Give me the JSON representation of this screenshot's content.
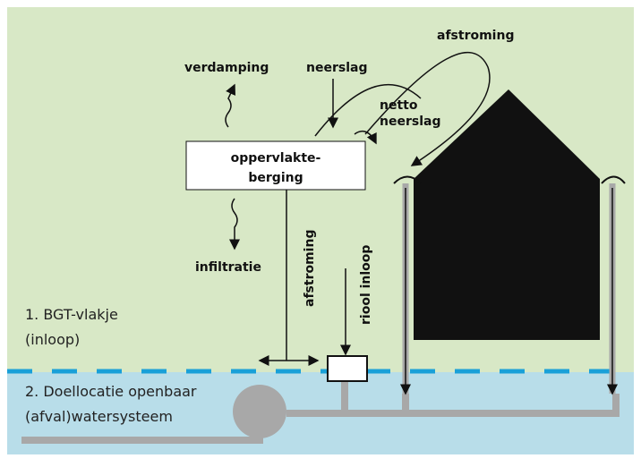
{
  "labels": {
    "afstroming_top": "afstroming",
    "verdamping": "verdamping",
    "neerslag": "neerslag",
    "netto_1": "netto",
    "netto_2": "neerslag",
    "box_1": "oppervlakte-",
    "box_2": "berging",
    "infiltratie": "infiltratie",
    "afstroming_vertical": "afstroming",
    "riool_inloop": "riool inloop",
    "zone1_1": "1. BGT-vlakje",
    "zone1_2": "(inloop)",
    "zone2_1": "2. Doellocatie openbaar",
    "zone2_2": "(afval)watersysteem"
  }
}
